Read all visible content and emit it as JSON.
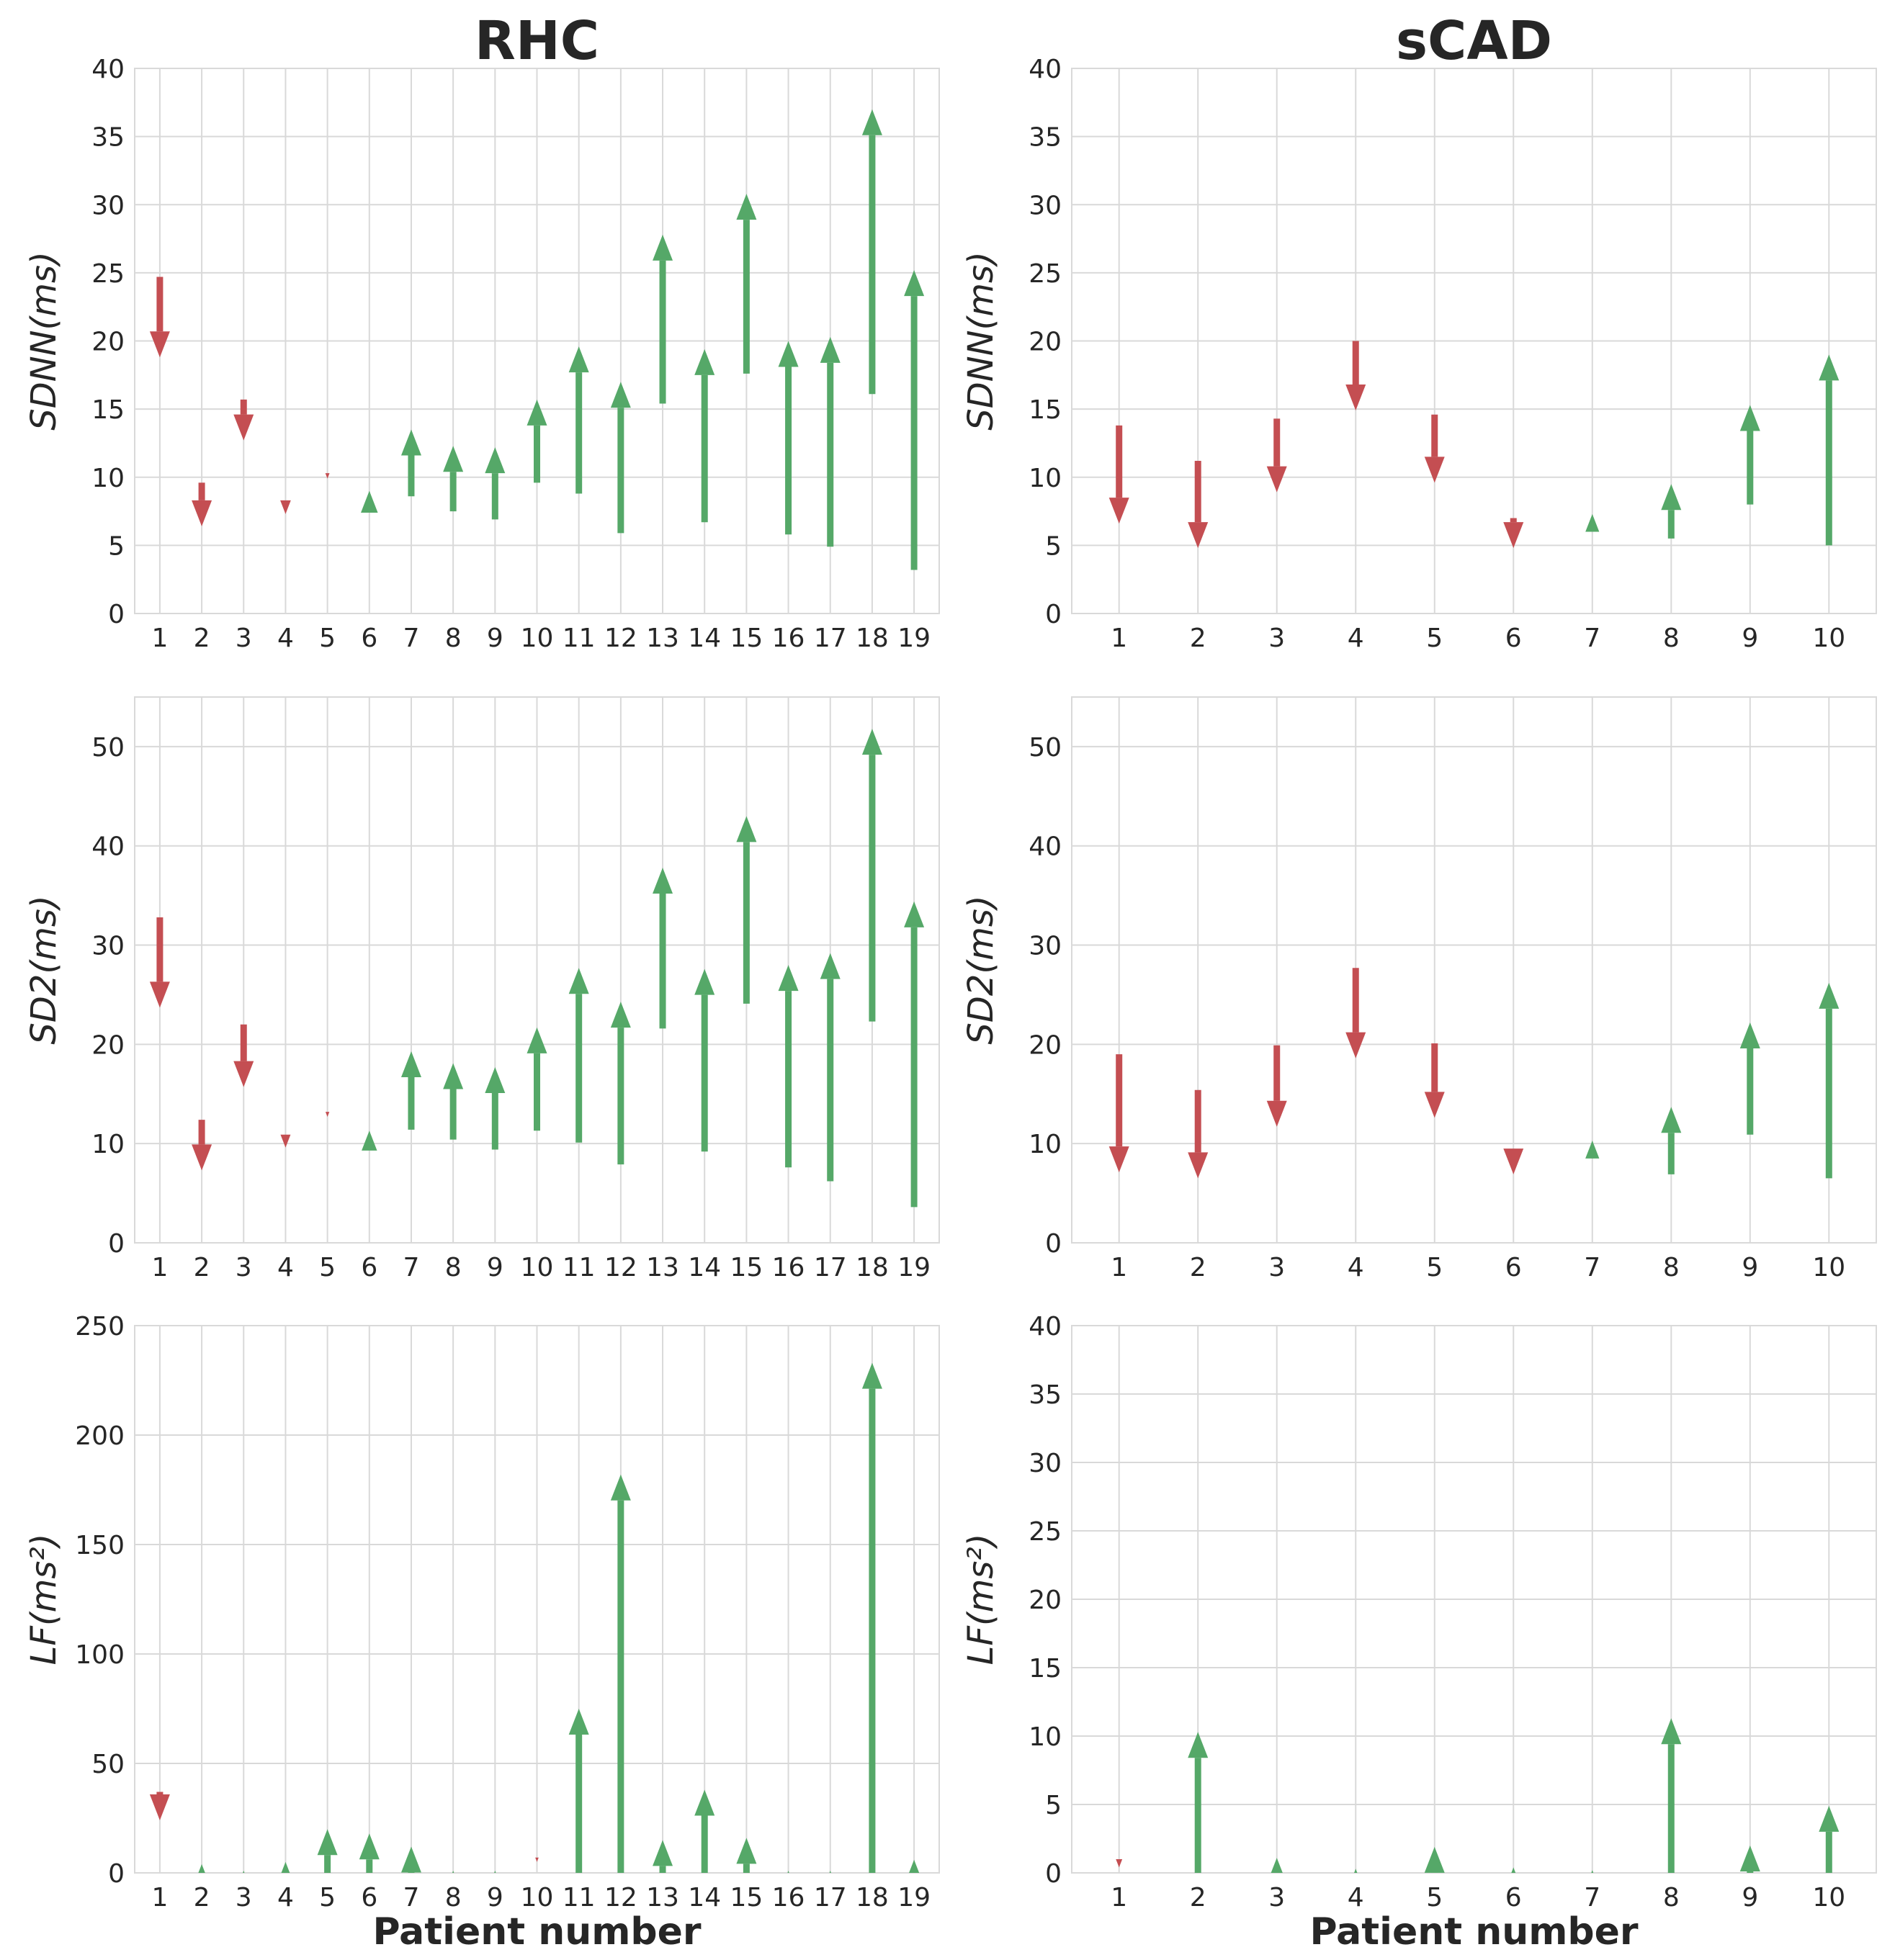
{
  "colors": {
    "increase": "#55a868",
    "decrease": "#c44e52"
  },
  "chart_data": [
    {
      "type": "arrow",
      "title": "RHC",
      "xlabel": "",
      "ylabel": "SDNN(ms)",
      "ylim": [
        0,
        40
      ],
      "yticks": [
        "0",
        "5",
        "10",
        "15",
        "20",
        "25",
        "30",
        "35",
        "40"
      ],
      "categories": [
        "1",
        "2",
        "3",
        "4",
        "5",
        "6",
        "7",
        "8",
        "9",
        "10",
        "11",
        "12",
        "13",
        "14",
        "15",
        "16",
        "17",
        "18",
        "19"
      ],
      "series": [
        {
          "name": "start",
          "values": [
            24.7,
            9.6,
            15.7,
            8.3,
            10.3,
            7.4,
            8.6,
            7.5,
            6.9,
            9.6,
            8.8,
            5.9,
            15.4,
            6.7,
            17.6,
            5.8,
            4.9,
            16.1,
            3.2
          ]
        },
        {
          "name": "end",
          "values": [
            18.8,
            6.4,
            12.7,
            7.3,
            9.9,
            9.0,
            13.5,
            12.3,
            12.2,
            15.7,
            19.6,
            17.0,
            27.8,
            19.4,
            30.8,
            20.0,
            20.3,
            37.0,
            25.2
          ]
        }
      ]
    },
    {
      "type": "arrow",
      "title": "sCAD",
      "xlabel": "",
      "ylabel": "SDNN(ms)",
      "ylim": [
        0,
        40
      ],
      "yticks": [
        "0",
        "5",
        "10",
        "15",
        "20",
        "25",
        "30",
        "35",
        "40"
      ],
      "categories": [
        "1",
        "2",
        "3",
        "4",
        "5",
        "6",
        "7",
        "8",
        "9",
        "10"
      ],
      "series": [
        {
          "name": "start",
          "values": [
            13.8,
            11.2,
            14.3,
            20.0,
            14.6,
            7.0,
            6.0,
            5.5,
            8.0,
            5.0
          ]
        },
        {
          "name": "end",
          "values": [
            6.6,
            4.8,
            8.9,
            14.9,
            9.6,
            4.8,
            7.3,
            9.5,
            15.3,
            19.0
          ]
        }
      ]
    },
    {
      "type": "arrow",
      "title": "",
      "xlabel": "",
      "ylabel": "SD2(ms)",
      "ylim": [
        0,
        55
      ],
      "yticks": [
        "0",
        "10",
        "20",
        "30",
        "40",
        "50"
      ],
      "categories": [
        "1",
        "2",
        "3",
        "4",
        "5",
        "6",
        "7",
        "8",
        "9",
        "10",
        "11",
        "12",
        "13",
        "14",
        "15",
        "16",
        "17",
        "18",
        "19"
      ],
      "series": [
        {
          "name": "start",
          "values": [
            32.8,
            12.4,
            22.0,
            10.9,
            13.2,
            9.3,
            11.4,
            10.4,
            9.4,
            11.3,
            10.1,
            7.9,
            21.6,
            9.2,
            24.1,
            7.6,
            6.2,
            22.3,
            3.6
          ]
        },
        {
          "name": "end",
          "values": [
            23.7,
            7.3,
            15.7,
            9.6,
            12.7,
            11.3,
            19.3,
            18.1,
            17.7,
            21.7,
            27.7,
            24.3,
            37.8,
            27.6,
            43.0,
            28.0,
            29.2,
            51.8,
            34.4
          ]
        }
      ]
    },
    {
      "type": "arrow",
      "title": "",
      "xlabel": "",
      "ylabel": "SD2(ms)",
      "ylim": [
        0,
        55
      ],
      "yticks": [
        "0",
        "10",
        "20",
        "30",
        "40",
        "50"
      ],
      "categories": [
        "1",
        "2",
        "3",
        "4",
        "5",
        "6",
        "7",
        "8",
        "9",
        "10"
      ],
      "series": [
        {
          "name": "start",
          "values": [
            19.0,
            15.4,
            19.9,
            27.7,
            20.1,
            9.5,
            8.5,
            6.9,
            10.9,
            6.5
          ]
        },
        {
          "name": "end",
          "values": [
            7.1,
            6.5,
            11.7,
            18.6,
            12.6,
            6.9,
            10.3,
            13.7,
            22.2,
            26.2
          ]
        }
      ]
    },
    {
      "type": "arrow",
      "title": "",
      "xlabel": "Patient number",
      "ylabel": "LF(ms²)",
      "ylim": [
        0,
        250
      ],
      "yticks": [
        "0",
        "50",
        "100",
        "150",
        "200",
        "250"
      ],
      "categories": [
        "1",
        "2",
        "3",
        "4",
        "5",
        "6",
        "7",
        "8",
        "9",
        "10",
        "11",
        "12",
        "13",
        "14",
        "15",
        "16",
        "17",
        "18",
        "19"
      ],
      "series": [
        {
          "name": "start",
          "values": [
            37,
            0,
            0,
            0,
            0,
            0,
            0,
            0,
            0,
            7,
            0,
            0,
            0,
            0,
            0,
            0,
            0,
            0,
            0
          ]
        },
        {
          "name": "end",
          "values": [
            24,
            4,
            1,
            5,
            20,
            18,
            12,
            1,
            1,
            5,
            75,
            182,
            15,
            38,
            16,
            1,
            1,
            233,
            6
          ]
        }
      ]
    },
    {
      "type": "arrow",
      "title": "",
      "xlabel": "Patient number",
      "ylabel": "LF(ms²)",
      "ylim": [
        0,
        40
      ],
      "yticks": [
        "0",
        "5",
        "10",
        "15",
        "20",
        "25",
        "30",
        "35",
        "40"
      ],
      "categories": [
        "1",
        "2",
        "3",
        "4",
        "5",
        "6",
        "7",
        "8",
        "9",
        "10"
      ],
      "series": [
        {
          "name": "start",
          "values": [
            1.0,
            0,
            0,
            0,
            0,
            0,
            0,
            0,
            0,
            0
          ]
        },
        {
          "name": "end",
          "values": [
            0.4,
            10.3,
            1.1,
            0.3,
            1.9,
            0.4,
            0.2,
            11.3,
            2.0,
            4.9
          ]
        }
      ]
    }
  ]
}
